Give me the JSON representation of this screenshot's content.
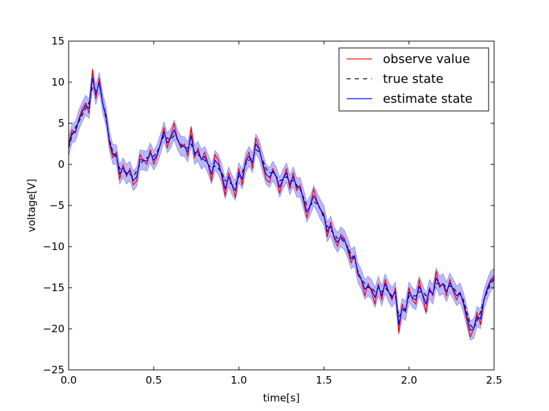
{
  "chart_data": {
    "type": "line",
    "title": "",
    "xlabel": "time[s]",
    "ylabel": "voltage[V]",
    "xlim": [
      0.0,
      2.5
    ],
    "ylim": [
      -25,
      15
    ],
    "xticks": [
      "0.0",
      "0.5",
      "1.0",
      "1.5",
      "2.0",
      "2.5"
    ],
    "xtick_values": [
      0.0,
      0.5,
      1.0,
      1.5,
      2.0,
      2.5
    ],
    "yticks": [
      "15",
      "10",
      "5",
      "0",
      "−5",
      "−10",
      "−15",
      "−20",
      "−25"
    ],
    "ytick_values": [
      15,
      10,
      5,
      0,
      -5,
      -10,
      -15,
      -20,
      -25
    ],
    "grid": false,
    "legend_position": "top-right",
    "band_half_width": 1.2,
    "x": [
      0.0,
      0.02,
      0.04,
      0.06,
      0.08,
      0.1,
      0.12,
      0.14,
      0.16,
      0.18,
      0.2,
      0.22,
      0.24,
      0.26,
      0.28,
      0.3,
      0.32,
      0.34,
      0.36,
      0.38,
      0.4,
      0.42,
      0.44,
      0.46,
      0.48,
      0.5,
      0.52,
      0.54,
      0.56,
      0.58,
      0.6,
      0.62,
      0.64,
      0.66,
      0.68,
      0.7,
      0.72,
      0.74,
      0.76,
      0.78,
      0.8,
      0.82,
      0.84,
      0.86,
      0.88,
      0.9,
      0.92,
      0.94,
      0.96,
      0.98,
      1.0,
      1.02,
      1.04,
      1.06,
      1.08,
      1.1,
      1.12,
      1.14,
      1.16,
      1.18,
      1.2,
      1.22,
      1.24,
      1.26,
      1.28,
      1.3,
      1.32,
      1.34,
      1.36,
      1.38,
      1.4,
      1.42,
      1.44,
      1.46,
      1.48,
      1.5,
      1.52,
      1.54,
      1.56,
      1.58,
      1.6,
      1.62,
      1.64,
      1.66,
      1.68,
      1.7,
      1.72,
      1.74,
      1.76,
      1.78,
      1.8,
      1.82,
      1.84,
      1.86,
      1.88,
      1.9,
      1.92,
      1.94,
      1.96,
      1.98,
      2.0,
      2.02,
      2.04,
      2.06,
      2.08,
      2.1,
      2.12,
      2.14,
      2.16,
      2.18,
      2.2,
      2.22,
      2.24,
      2.26,
      2.28,
      2.3,
      2.32,
      2.34,
      2.36,
      2.38,
      2.4,
      2.42,
      2.44,
      2.46,
      2.48,
      2.5
    ],
    "series": [
      {
        "name": "observe value",
        "color": "#ff0000",
        "style": "solid",
        "values": [
          2.5,
          4.2,
          3.8,
          5.5,
          6.8,
          7.5,
          6.2,
          11.5,
          8.0,
          10.5,
          7.5,
          6.0,
          2.5,
          0.8,
          1.5,
          -1.8,
          0.0,
          -1.5,
          -0.5,
          -2.5,
          -2.0,
          1.2,
          0.5,
          0.0,
          1.8,
          0.0,
          1.0,
          2.5,
          4.5,
          2.0,
          3.5,
          5.0,
          3.0,
          2.0,
          2.5,
          1.0,
          4.5,
          0.8,
          2.0,
          0.5,
          1.5,
          0.0,
          -2.0,
          1.2,
          0.5,
          -1.5,
          -3.8,
          -1.0,
          -2.5,
          -4.0,
          -0.5,
          -2.5,
          0.5,
          1.5,
          -0.5,
          3.2,
          2.0,
          0.0,
          -1.8,
          -2.2,
          -0.5,
          -1.5,
          -3.5,
          -1.8,
          -0.5,
          -3.0,
          -1.0,
          -3.2,
          -2.5,
          -4.5,
          -6.5,
          -5.0,
          -3.0,
          -4.5,
          -5.5,
          -6.0,
          -8.8,
          -7.0,
          -9.0,
          -10.0,
          -8.5,
          -9.0,
          -10.5,
          -12.0,
          -11.0,
          -13.5,
          -14.0,
          -16.0,
          -14.5,
          -15.5,
          -17.0,
          -14.5,
          -16.5,
          -14.0,
          -15.5,
          -16.5,
          -15.0,
          -20.5,
          -17.0,
          -18.0,
          -15.0,
          -16.5,
          -17.0,
          -14.0,
          -16.0,
          -18.0,
          -15.0,
          -16.0,
          -13.0,
          -15.0,
          -14.5,
          -16.0,
          -14.0,
          -15.5,
          -16.5,
          -15.5,
          -17.0,
          -19.0,
          -21.0,
          -20.0,
          -18.0,
          -19.5,
          -16.5,
          -15.0,
          -14.0,
          -13.5
        ]
      },
      {
        "name": "true state",
        "color": "#000000",
        "style": "dashed",
        "values": [
          2.0,
          3.5,
          4.5,
          5.2,
          6.0,
          6.8,
          7.5,
          9.5,
          9.0,
          9.8,
          7.5,
          5.5,
          3.0,
          1.5,
          0.8,
          -0.5,
          -0.8,
          -1.0,
          -1.2,
          -1.5,
          -0.8,
          0.0,
          0.5,
          0.8,
          1.0,
          1.0,
          1.5,
          2.5,
          3.5,
          3.2,
          3.0,
          3.5,
          3.0,
          2.5,
          2.0,
          2.0,
          2.5,
          1.5,
          1.2,
          0.8,
          0.5,
          0.0,
          -0.5,
          -0.2,
          -0.5,
          -1.0,
          -2.0,
          -2.0,
          -2.5,
          -2.5,
          -1.5,
          -1.0,
          0.0,
          0.5,
          0.8,
          1.8,
          1.5,
          0.5,
          -0.5,
          -1.0,
          -1.0,
          -1.5,
          -2.0,
          -1.8,
          -1.5,
          -2.0,
          -2.0,
          -2.5,
          -3.0,
          -4.0,
          -5.0,
          -5.0,
          -4.5,
          -4.8,
          -5.5,
          -6.5,
          -7.5,
          -8.0,
          -8.5,
          -9.0,
          -9.0,
          -9.5,
          -10.0,
          -11.0,
          -11.5,
          -13.0,
          -14.0,
          -14.5,
          -15.0,
          -15.0,
          -15.5,
          -15.0,
          -15.5,
          -15.0,
          -15.5,
          -16.0,
          -16.0,
          -18.5,
          -18.0,
          -17.5,
          -16.0,
          -16.0,
          -16.0,
          -15.5,
          -15.5,
          -16.0,
          -15.5,
          -15.5,
          -14.5,
          -14.5,
          -14.5,
          -15.0,
          -14.8,
          -15.0,
          -15.5,
          -15.8,
          -16.5,
          -18.0,
          -19.5,
          -20.0,
          -19.0,
          -18.0,
          -16.5,
          -15.5,
          -14.5,
          -14.0
        ]
      },
      {
        "name": "estimate state",
        "color": "#0000ff",
        "style": "solid",
        "values": [
          2.2,
          3.8,
          4.0,
          5.4,
          6.4,
          7.2,
          6.8,
          10.5,
          8.5,
          10.0,
          7.5,
          5.8,
          2.8,
          1.2,
          1.2,
          -1.2,
          -0.4,
          -1.2,
          -0.8,
          -2.0,
          -1.5,
          0.6,
          0.5,
          0.4,
          1.4,
          0.5,
          1.2,
          2.5,
          4.0,
          2.6,
          3.2,
          4.2,
          3.0,
          2.2,
          2.2,
          1.5,
          3.5,
          1.2,
          1.6,
          0.6,
          1.0,
          0.0,
          -1.2,
          0.5,
          0.0,
          -1.2,
          -3.0,
          -1.5,
          -2.5,
          -3.2,
          -1.0,
          -1.8,
          0.2,
          1.0,
          0.2,
          2.5,
          1.8,
          0.2,
          -1.2,
          -1.6,
          -0.8,
          -1.5,
          -2.8,
          -1.8,
          -1.0,
          -2.5,
          -1.5,
          -2.8,
          -2.8,
          -4.2,
          -5.8,
          -5.0,
          -3.8,
          -4.6,
          -5.5,
          -6.2,
          -8.2,
          -7.5,
          -8.8,
          -9.5,
          -8.8,
          -9.2,
          -10.2,
          -11.5,
          -11.2,
          -13.2,
          -14.0,
          -15.2,
          -14.8,
          -15.2,
          -16.2,
          -14.8,
          -16.0,
          -14.5,
          -15.5,
          -16.2,
          -15.5,
          -19.5,
          -17.5,
          -17.8,
          -15.5,
          -16.2,
          -16.5,
          -14.8,
          -15.8,
          -17.0,
          -15.2,
          -15.8,
          -13.8,
          -14.8,
          -14.5,
          -15.5,
          -14.4,
          -15.2,
          -16.0,
          -15.6,
          -16.8,
          -18.5,
          -20.2,
          -20.0,
          -18.5,
          -18.8,
          -16.5,
          -15.2,
          -14.2,
          -13.8
        ]
      }
    ]
  }
}
